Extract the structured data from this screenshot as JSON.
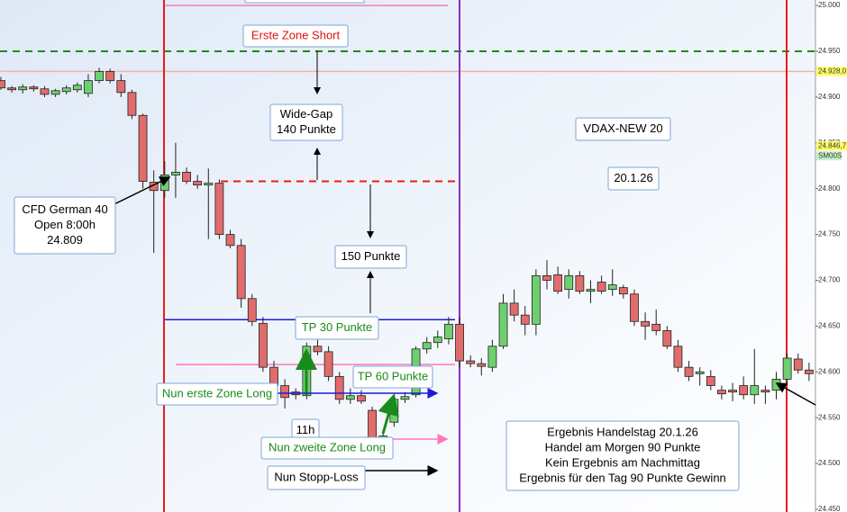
{
  "chart_data": {
    "type": "candlestick",
    "categories": [
      null,
      null,
      null,
      null,
      null,
      null,
      null,
      null,
      null,
      null,
      null,
      null,
      null,
      null,
      null,
      null,
      null,
      null,
      null,
      null,
      null,
      null,
      null,
      null,
      null,
      null,
      null,
      null,
      null,
      null,
      null,
      null,
      null,
      null,
      null,
      null,
      null,
      null,
      null,
      null,
      null,
      null,
      null,
      null,
      null,
      null,
      null,
      null,
      null,
      null,
      null,
      null,
      null,
      null,
      null,
      null,
      null,
      null,
      null,
      null,
      null,
      null,
      null,
      null,
      null,
      null,
      null,
      null,
      null,
      null,
      null,
      null,
      null,
      null,
      null
    ],
    "open": [
      24918,
      24910,
      24908,
      24911,
      24909,
      24903,
      24906,
      24908,
      24904,
      24918,
      24928,
      24918,
      24905,
      24880,
      24807,
      24798,
      24815,
      24818,
      24808,
      24804,
      24806,
      24750,
      24738,
      24680,
      24653,
      24605,
      24585,
      24578,
      24574,
      24628,
      24622,
      24595,
      24570,
      24574,
      24558,
      24515,
      24545,
      24570,
      24575,
      24625,
      24632,
      24636,
      24652,
      24612,
      24609,
      24605,
      24628,
      24675,
      24662,
      24652,
      24705,
      24706,
      24690,
      24705,
      24688,
      24698,
      24690,
      24692,
      24685,
      24655,
      24652,
      24645,
      24628,
      24605,
      24598,
      24595,
      24580,
      24580,
      24585,
      24575,
      24580,
      24580,
      24592,
      24614,
      24602
    ],
    "high": [
      24922,
      24912,
      24914,
      24913,
      24912,
      24909,
      24913,
      24916,
      24925,
      24932,
      24931,
      24925,
      24908,
      24882,
      24820,
      24830,
      24850,
      24823,
      24815,
      24822,
      24810,
      24755,
      24745,
      24685,
      24660,
      24612,
      24592,
      24582,
      24632,
      24635,
      24628,
      24600,
      24582,
      24580,
      24562,
      24535,
      24575,
      24578,
      24628,
      24638,
      24645,
      24660,
      24660,
      24618,
      24615,
      24635,
      24685,
      24690,
      24672,
      24712,
      24722,
      24715,
      24712,
      24710,
      24700,
      24705,
      24712,
      24695,
      24690,
      24665,
      24668,
      24650,
      24635,
      24612,
      24605,
      24602,
      24585,
      24588,
      24595,
      24625,
      24585,
      24600,
      24620,
      24620,
      24610
    ],
    "low": [
      24908,
      24905,
      24904,
      24906,
      24900,
      24900,
      24903,
      24905,
      24900,
      24915,
      24915,
      24900,
      24876,
      24800,
      24730,
      24790,
      24790,
      24805,
      24800,
      24745,
      24745,
      24735,
      24670,
      24650,
      24600,
      24580,
      24560,
      24570,
      24570,
      24618,
      24590,
      24565,
      24565,
      24565,
      24510,
      24508,
      24540,
      24566,
      24572,
      24620,
      24626,
      24630,
      24605,
      24605,
      24596,
      24600,
      24625,
      24655,
      24640,
      24640,
      24690,
      24685,
      24680,
      24685,
      24675,
      24685,
      24683,
      24680,
      24650,
      24635,
      24640,
      24625,
      24600,
      24590,
      24585,
      24580,
      24570,
      24568,
      24570,
      24565,
      24565,
      24570,
      24585,
      24598,
      24590
    ],
    "close": [
      24910,
      24908,
      24911,
      24909,
      24903,
      24907,
      24910,
      24913,
      24918,
      24928,
      24918,
      24905,
      24880,
      24808,
      24798,
      24815,
      24818,
      24808,
      24804,
      24806,
      24750,
      24738,
      24680,
      24655,
      24605,
      24585,
      24572,
      24575,
      24628,
      24622,
      24595,
      24570,
      24574,
      24568,
      24515,
      24530,
      24570,
      24573,
      24625,
      24632,
      24638,
      24652,
      24612,
      24609,
      24606,
      24628,
      24675,
      24662,
      24652,
      24705,
      24700,
      24688,
      24705,
      24688,
      24690,
      24688,
      24695,
      24685,
      24655,
      24650,
      24645,
      24628,
      24605,
      24595,
      24600,
      24585,
      24576,
      24578,
      24575,
      24585,
      24578,
      24592,
      24615,
      24602,
      24598
    ],
    "up_color": "#6fcf6f",
    "down_color": "#e06c6c",
    "ylim": [
      24447,
      25006
    ],
    "yticks": [
      {
        "value": 25000,
        "label": "25.000"
      },
      {
        "value": 24950,
        "label": "24.950"
      },
      {
        "value": 24900,
        "label": "24.900"
      },
      {
        "value": 24850,
        "label": "24.850"
      },
      {
        "value": 24800,
        "label": "24.800"
      },
      {
        "value": 24750,
        "label": "24.750"
      },
      {
        "value": 24700,
        "label": "24.700"
      },
      {
        "value": 24650,
        "label": "24.650"
      },
      {
        "value": 24600,
        "label": "24.600"
      },
      {
        "value": 24550,
        "label": "24.550"
      },
      {
        "value": 24500,
        "label": "24.500"
      },
      {
        "value": 24450,
        "label": "24.450"
      }
    ],
    "price_labels": [
      {
        "value": 24928,
        "label": "24.928,0",
        "color": "#ffff66"
      },
      {
        "value": 24846.7,
        "label": "24.846,7",
        "color": "#ffff66"
      }
    ],
    "price_tag": "SM00S",
    "levels": [
      {
        "value": 25000,
        "color": "#ff77bb",
        "dash": false
      },
      {
        "value": 24950,
        "color": "#1e8a1e",
        "dash": true
      },
      {
        "value": 24928,
        "color": "#f3b0b0",
        "dash": false
      },
      {
        "value": 24808,
        "color": "#e81c1c",
        "dash": true
      },
      {
        "value": 24657,
        "color": "#1a1adc",
        "dash": false
      },
      {
        "value": 24608,
        "color": "#ff77bb",
        "dash": false
      }
    ],
    "annotations": [
      {
        "lines": [
          "Erste Zone Short"
        ],
        "color": "#e01010"
      },
      {
        "lines": [
          "Wide-Gap",
          "140 Punkte"
        ],
        "color": "#000000"
      },
      {
        "lines": [
          "VDAX-NEW 20"
        ],
        "color": "#000000"
      },
      {
        "lines": [
          "20.1.26"
        ],
        "color": "#000000"
      },
      {
        "lines": [
          "CFD German 40",
          "Open 8:00h",
          "24.809"
        ],
        "color": "#000000"
      },
      {
        "lines": [
          "150 Punkte"
        ],
        "color": "#000000"
      },
      {
        "lines": [
          "TP 30 Punkte"
        ],
        "color": "#1a8a1a"
      },
      {
        "lines": [
          "TP 60 Punkte"
        ],
        "color": "#1a8a1a"
      },
      {
        "lines": [
          "Nun erste Zone Long"
        ],
        "color": "#1a8a1a"
      },
      {
        "lines": [
          "11h"
        ],
        "color": "#000000"
      },
      {
        "lines": [
          "Nun zweite Zone Long"
        ],
        "color": "#1a8a1a"
      },
      {
        "lines": [
          "Nun Stopp-Loss"
        ],
        "color": "#000000"
      },
      {
        "lines": [
          "Ergebnis Handelstag 20.1.26",
          "Handel am Morgen  90 Punkte",
          "Kein Ergebnis am Nachmittag",
          "Ergebnis für den Tag 90 Punkte Gewinn"
        ],
        "color": "#000000"
      }
    ]
  }
}
